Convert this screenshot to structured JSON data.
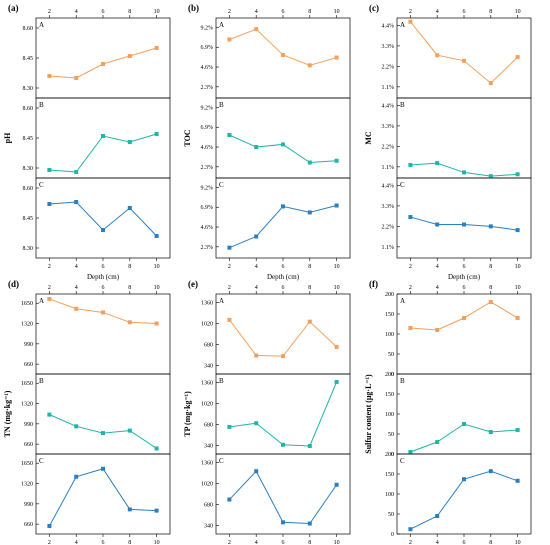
{
  "colors": {
    "A": "#f4a05a",
    "B": "#1fb5a8",
    "C": "#2a7fc1"
  },
  "chart_data": [
    {
      "id": "a",
      "panel_label": "(a)",
      "type": "line",
      "x": [
        2,
        4,
        6,
        8,
        10
      ],
      "xticks": [
        2,
        4,
        6,
        8,
        10
      ],
      "xlabel": "Depth (cm)",
      "ylabel": "pH",
      "subplots": [
        {
          "name": "A",
          "color_key": "A",
          "ylim": [
            8.25,
            8.65
          ],
          "yticks": [
            "8.30",
            "8.45",
            "8.60"
          ],
          "tick_values": [
            8.3,
            8.45,
            8.6
          ],
          "values": [
            8.36,
            8.35,
            8.42,
            8.46,
            8.5
          ]
        },
        {
          "name": "B",
          "color_key": "B",
          "ylim": [
            8.25,
            8.65
          ],
          "yticks": [
            "8.30",
            "8.45",
            "8.60"
          ],
          "tick_values": [
            8.3,
            8.45,
            8.6
          ],
          "values": [
            8.29,
            8.28,
            8.46,
            8.43,
            8.47
          ]
        },
        {
          "name": "C",
          "color_key": "C",
          "ylim": [
            8.25,
            8.65
          ],
          "yticks": [
            "8.30",
            "8.45",
            "8.60"
          ],
          "tick_values": [
            8.3,
            8.45,
            8.6
          ],
          "values": [
            8.52,
            8.53,
            8.39,
            8.5,
            8.36
          ]
        }
      ]
    },
    {
      "id": "b",
      "panel_label": "(b)",
      "type": "line",
      "x": [
        2,
        4,
        6,
        8,
        10
      ],
      "xticks": [
        2,
        4,
        6,
        8,
        10
      ],
      "xlabel": "Depth (cm)",
      "ylabel": "TOC",
      "subplots": [
        {
          "name": "A",
          "color_key": "A",
          "ylim": [
            1.0,
            10.3
          ],
          "yticks": [
            "2.3%",
            "4.6%",
            "6.9%",
            "9.2%"
          ],
          "tick_values": [
            2.3,
            4.6,
            6.9,
            9.2
          ],
          "values": [
            7.8,
            9.0,
            6.0,
            4.8,
            5.7
          ]
        },
        {
          "name": "B",
          "color_key": "B",
          "ylim": [
            1.0,
            10.3
          ],
          "yticks": [
            "2.3%",
            "4.6%",
            "6.9%",
            "9.2%"
          ],
          "tick_values": [
            2.3,
            4.6,
            6.9,
            9.2
          ],
          "values": [
            6.0,
            4.6,
            4.9,
            2.8,
            3.0
          ]
        },
        {
          "name": "C",
          "color_key": "C",
          "ylim": [
            1.0,
            10.3
          ],
          "yticks": [
            "2.3%",
            "4.6%",
            "6.9%",
            "9.2%"
          ],
          "tick_values": [
            2.3,
            4.6,
            6.9,
            9.2
          ],
          "values": [
            2.2,
            3.5,
            7.0,
            6.3,
            7.1
          ]
        }
      ]
    },
    {
      "id": "c",
      "panel_label": "(c)",
      "type": "line",
      "x": [
        2,
        4,
        6,
        8,
        10
      ],
      "xticks": [
        2,
        4,
        6,
        8,
        10
      ],
      "xlabel": "Depth (cm)",
      "ylabel": "MC",
      "subplots": [
        {
          "name": "A",
          "color_key": "A",
          "ylim": [
            0.5,
            4.8
          ],
          "yticks": [
            "1.1%",
            "2.2%",
            "3.3%",
            "4.4%"
          ],
          "tick_values": [
            1.1,
            2.2,
            3.3,
            4.4
          ],
          "values": [
            4.6,
            2.8,
            2.5,
            1.3,
            2.7
          ]
        },
        {
          "name": "B",
          "color_key": "B",
          "ylim": [
            0.5,
            4.8
          ],
          "yticks": [
            "1.1%",
            "2.2%",
            "3.3%",
            "4.4%"
          ],
          "tick_values": [
            1.1,
            2.2,
            3.3,
            4.4
          ],
          "values": [
            1.2,
            1.3,
            0.8,
            0.6,
            0.7
          ]
        },
        {
          "name": "C",
          "color_key": "C",
          "ylim": [
            0.5,
            4.8
          ],
          "yticks": [
            "1.1%",
            "2.2%",
            "3.3%",
            "4.4%"
          ],
          "tick_values": [
            1.1,
            2.2,
            3.3,
            4.4
          ],
          "values": [
            2.7,
            2.3,
            2.3,
            2.2,
            2.0
          ]
        }
      ]
    },
    {
      "id": "d",
      "panel_label": "(d)",
      "type": "line",
      "x": [
        2,
        4,
        6,
        8,
        10
      ],
      "xticks": [
        2,
        4,
        6,
        8,
        10
      ],
      "xlabel": "Depth (cm)",
      "ylabel": "TN (mg·kg⁻¹)",
      "subplots": [
        {
          "name": "A",
          "color_key": "A",
          "ylim": [
            500,
            1800
          ],
          "yticks": [
            "660",
            "990",
            "1320",
            "1650"
          ],
          "tick_values": [
            660,
            990,
            1320,
            1650
          ],
          "values": [
            1720,
            1560,
            1500,
            1340,
            1320
          ]
        },
        {
          "name": "B",
          "color_key": "B",
          "ylim": [
            500,
            1800
          ],
          "yticks": [
            "660",
            "990",
            "1320",
            "1650"
          ],
          "tick_values": [
            660,
            990,
            1320,
            1650
          ],
          "values": [
            1140,
            950,
            840,
            880,
            590
          ]
        },
        {
          "name": "C",
          "color_key": "C",
          "ylim": [
            500,
            1800
          ],
          "yticks": [
            "660",
            "990",
            "1320",
            "1650"
          ],
          "tick_values": [
            660,
            990,
            1320,
            1650
          ],
          "values": [
            630,
            1430,
            1560,
            900,
            880
          ]
        }
      ]
    },
    {
      "id": "e",
      "panel_label": "(e)",
      "type": "line",
      "x": [
        2,
        4,
        6,
        8,
        10
      ],
      "xticks": [
        2,
        4,
        6,
        8,
        10
      ],
      "xlabel": "Depth (cm)",
      "ylabel": "TP (mg·kg⁻¹)",
      "subplots": [
        {
          "name": "A",
          "color_key": "A",
          "ylim": [
            200,
            1500
          ],
          "yticks": [
            "340",
            "680",
            "1020",
            "1360"
          ],
          "tick_values": [
            340,
            680,
            1020,
            1360
          ],
          "values": [
            1080,
            500,
            490,
            1050,
            640
          ]
        },
        {
          "name": "B",
          "color_key": "B",
          "ylim": [
            200,
            1500
          ],
          "yticks": [
            "340",
            "680",
            "1020",
            "1360"
          ],
          "tick_values": [
            340,
            680,
            1020,
            1360
          ],
          "values": [
            640,
            700,
            350,
            330,
            1370
          ]
        },
        {
          "name": "C",
          "color_key": "C",
          "ylim": [
            200,
            1500
          ],
          "yticks": [
            "340",
            "680",
            "1020",
            "1360"
          ],
          "tick_values": [
            340,
            680,
            1020,
            1360
          ],
          "values": [
            760,
            1220,
            390,
            370,
            1000
          ]
        }
      ]
    },
    {
      "id": "f",
      "panel_label": "(f)",
      "type": "line",
      "x": [
        2,
        4,
        6,
        8,
        10
      ],
      "xticks": [
        2,
        4,
        6,
        8,
        10
      ],
      "xlabel": "Depth (cm)",
      "ylabel": "Sulfur content (μg·L⁻¹)",
      "subplots": [
        {
          "name": "A",
          "color_key": "A",
          "ylim": [
            0,
            200
          ],
          "yticks": [
            "0",
            "50",
            "100",
            "150",
            "200"
          ],
          "tick_values": [
            0,
            50,
            100,
            150,
            200
          ],
          "values": [
            115,
            110,
            140,
            180,
            140
          ]
        },
        {
          "name": "B",
          "color_key": "B",
          "ylim": [
            0,
            200
          ],
          "yticks": [
            "0",
            "50",
            "100",
            "150",
            "200"
          ],
          "tick_values": [
            0,
            50,
            100,
            150,
            200
          ],
          "values": [
            5,
            30,
            75,
            55,
            60
          ]
        },
        {
          "name": "C",
          "color_key": "C",
          "ylim": [
            0,
            200
          ],
          "yticks": [
            "0",
            "50",
            "100",
            "150",
            "200"
          ],
          "tick_values": [
            0,
            50,
            100,
            150,
            200
          ],
          "values": [
            12,
            45,
            137,
            157,
            133
          ]
        }
      ]
    }
  ]
}
